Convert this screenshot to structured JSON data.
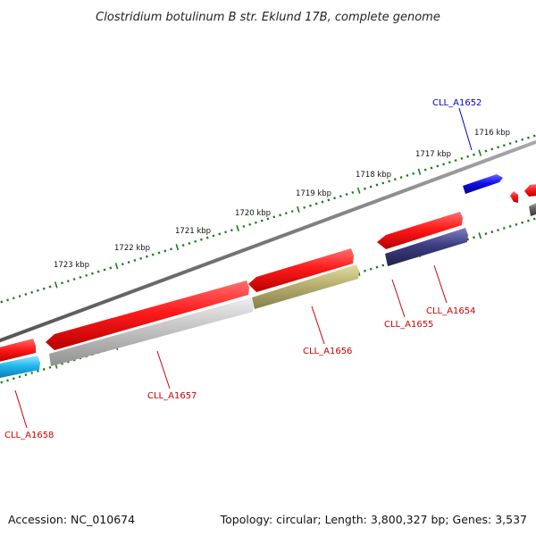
{
  "title": "Clostridium botulinum B str. Eklund 17B, complete genome",
  "footer": {
    "accession": "Accession: NC_010674",
    "summary": "Topology: circular; Length: 3,800,327 bp; Genes: 3,537"
  },
  "scale_labels": [
    "1716 kbp",
    "1717 kbp",
    "1718 kbp",
    "1719 kbp",
    "1720 kbp",
    "1721 kbp",
    "1722 kbp",
    "1723 kbp"
  ],
  "gene_labels": [
    {
      "name": "CLL_A1652",
      "color": "#0000cc"
    },
    {
      "name": "CLL_A1654",
      "color": "#cc0000"
    },
    {
      "name": "CLL_A1655",
      "color": "#cc0000"
    },
    {
      "name": "CLL_A1656",
      "color": "#cc0000"
    },
    {
      "name": "CLL_A1657",
      "color": "#cc0000"
    },
    {
      "name": "CLL_A1658",
      "color": "#cc0000"
    }
  ],
  "colors": {
    "backbone": "#777777",
    "tick": "#1a7a1a",
    "cds": "#ee1111",
    "feature_blue": "#1010ee",
    "feature_cyan": "#22b8ee",
    "feature_purple": "#3c3c80",
    "feature_olive": "#b8b070",
    "feature_gray": "#b8b8b8",
    "feature_dark": "#666666"
  }
}
